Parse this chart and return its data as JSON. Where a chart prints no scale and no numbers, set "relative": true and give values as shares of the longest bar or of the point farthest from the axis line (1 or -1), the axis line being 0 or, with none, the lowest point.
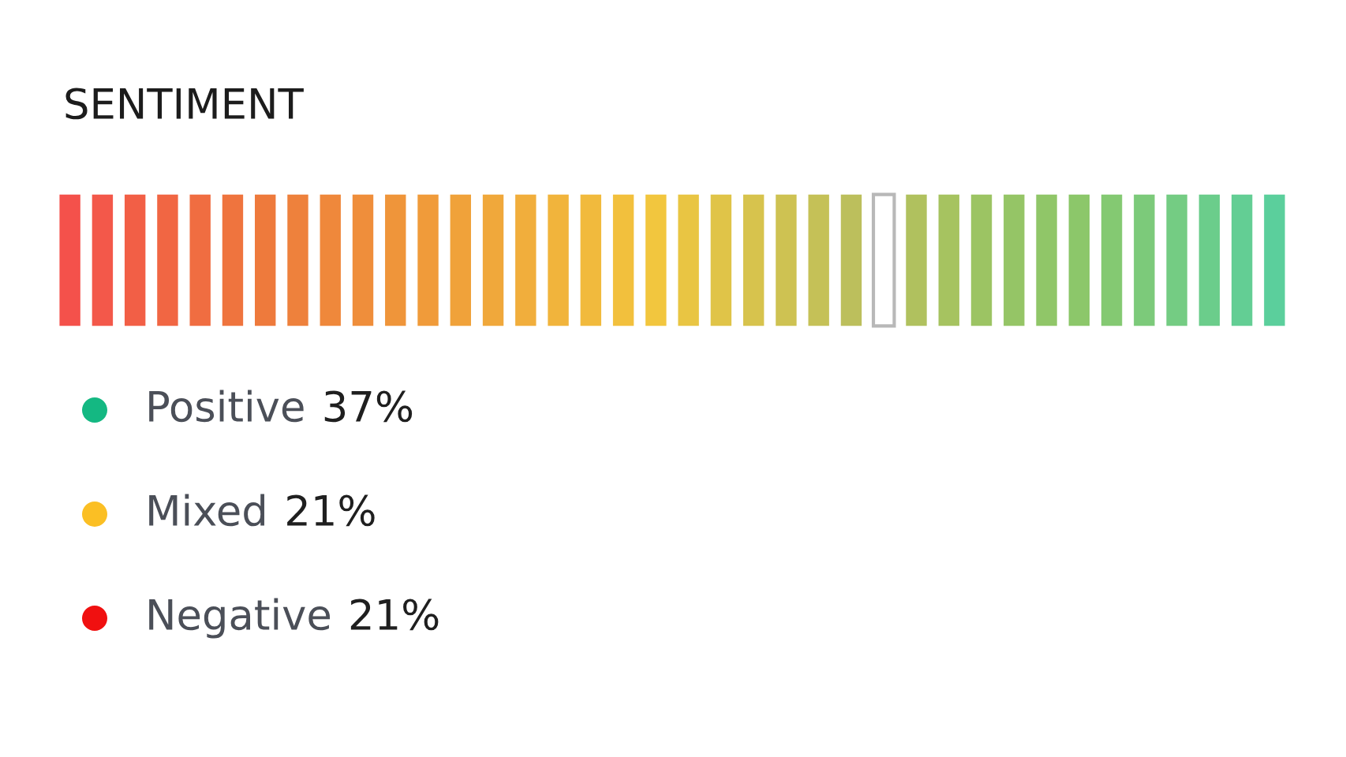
{
  "chart_data": [
    {
      "type": "bar",
      "title": "SENTIMENT",
      "relative": true,
      "categories": [
        null,
        null,
        null,
        null,
        null,
        null,
        null,
        null,
        null,
        null,
        null,
        null,
        null,
        null,
        null,
        null,
        null,
        null,
        null,
        null,
        null,
        null,
        null,
        null,
        null,
        null,
        null,
        null,
        null,
        null,
        null,
        null,
        null,
        null,
        null,
        null,
        null,
        null
      ],
      "values": [
        1,
        1,
        1,
        1,
        1,
        1,
        1,
        1,
        1,
        1,
        1,
        1,
        1,
        1,
        1,
        1,
        1,
        1,
        1,
        1,
        1,
        1,
        1,
        1,
        1,
        1,
        1,
        1,
        1,
        1,
        1,
        1,
        1,
        1,
        1,
        1,
        1,
        1
      ],
      "colors": [
        "#f4514b",
        "#f3584a",
        "#f25f46",
        "#f16643",
        "#f06d41",
        "#ef743e",
        "#ee7a3c",
        "#ee813c",
        "#ef883b",
        "#ef8e3b",
        "#ef953a",
        "#f09b3a",
        "#f0a23a",
        "#f0a83b",
        "#f1ae3c",
        "#f1b43c",
        "#f1ba3d",
        "#f2c03d",
        "#f2c63e",
        "#e9c543",
        "#e0c448",
        "#d7c34d",
        "#cec252",
        "#c5c157",
        "#bcbf5c",
        "#ffffff",
        "#b0c15e",
        "#a6c360",
        "#9cc463",
        "#95c566",
        "#90c668",
        "#8cc76a",
        "#84c972",
        "#7cca7a",
        "#74cc83",
        "#6bcd8b",
        "#63ce94",
        "#5bcf9c"
      ]
    },
    {
      "type": "other",
      "categories": [
        "Positive",
        "Mixed",
        "Negative"
      ],
      "values": [
        37,
        21,
        21
      ],
      "value_labels": [
        "37%",
        "21%",
        "21%"
      ],
      "colors": [
        "#14b882",
        "#fbbf24",
        "#f01010"
      ]
    }
  ]
}
